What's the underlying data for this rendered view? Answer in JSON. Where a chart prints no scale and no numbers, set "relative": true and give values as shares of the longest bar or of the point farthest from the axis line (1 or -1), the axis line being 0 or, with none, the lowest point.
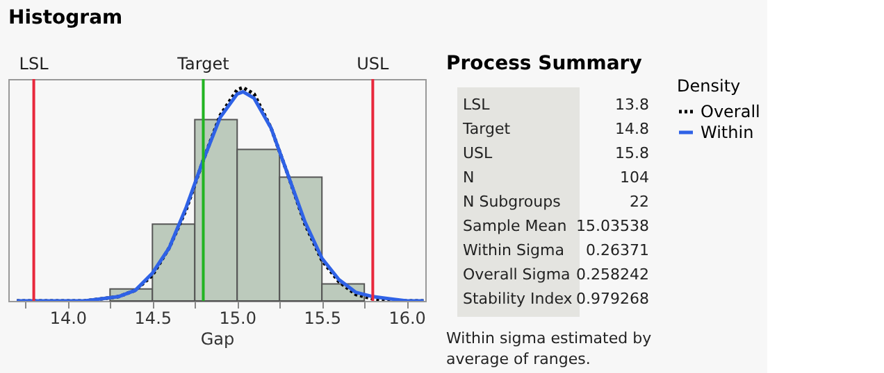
{
  "chart_data": [
    {
      "type": "histogram",
      "title": "Histogram",
      "xlabel": "Gap",
      "relative": true,
      "color": "#bccabc",
      "grid": false,
      "legend": "right",
      "legend_title": "Density",
      "bins": [
        14.25,
        14.5,
        14.75,
        15.0,
        15.25,
        15.5,
        15.75
      ],
      "values": [
        0.056,
        0.36,
        0.85,
        0.71,
        0.58,
        0.08
      ],
      "xlim": [
        13.65,
        16.11
      ],
      "xticks": [
        {
          "value": 13.75,
          "label": null
        },
        {
          "value": 14,
          "label": "14.0"
        },
        {
          "value": 14.25,
          "label": null
        },
        {
          "value": 14.5,
          "label": "14.5"
        },
        {
          "value": 14.75,
          "label": null
        },
        {
          "value": 15,
          "label": "15.0"
        },
        {
          "value": 15.25,
          "label": null
        },
        {
          "value": 15.5,
          "label": "15.5"
        },
        {
          "value": 15.75,
          "label": null
        },
        {
          "value": 16,
          "label": "16.0"
        }
      ],
      "ref_lines": [
        {
          "axis": "x",
          "value": 13.8,
          "label": "LSL",
          "color": "#e8283c"
        },
        {
          "axis": "x",
          "value": 14.8,
          "label": "Target",
          "color": "#22b422"
        },
        {
          "axis": "x",
          "value": 15.8,
          "label": "USL",
          "color": "#e8283c"
        }
      ],
      "series": [
        {
          "name": "Overall",
          "type": "line",
          "color": "#000000",
          "line_style": "dotted",
          "x": [
            13.7,
            13.8,
            13.9,
            14.0,
            14.1,
            14.2,
            14.3,
            14.4,
            14.5,
            14.6,
            14.7,
            14.8,
            14.9,
            15.0,
            15.035,
            15.1,
            15.2,
            15.3,
            15.4,
            15.5,
            15.6,
            15.7,
            15.8,
            15.9,
            16.0,
            16.1
          ],
          "values": [
            0,
            0,
            0,
            0,
            0,
            0.01,
            0.02,
            0.05,
            0.12,
            0.25,
            0.43,
            0.66,
            0.87,
            0.99,
            1.0,
            0.97,
            0.81,
            0.59,
            0.36,
            0.19,
            0.09,
            0.03,
            0.01,
            0,
            0,
            0
          ]
        },
        {
          "name": "Within",
          "type": "line",
          "color": "#2f62e6",
          "line_style": "solid",
          "x": [
            13.7,
            13.8,
            13.9,
            14.0,
            14.1,
            14.2,
            14.3,
            14.4,
            14.5,
            14.6,
            14.7,
            14.8,
            14.9,
            15.0,
            15.035,
            15.1,
            15.2,
            15.3,
            15.4,
            15.5,
            15.6,
            15.7,
            15.8,
            15.9,
            16.0,
            16.1
          ],
          "values": [
            0,
            0,
            0,
            0,
            0,
            0.01,
            0.02,
            0.05,
            0.13,
            0.25,
            0.44,
            0.66,
            0.86,
            0.97,
            0.98,
            0.95,
            0.81,
            0.59,
            0.37,
            0.2,
            0.1,
            0.04,
            0.02,
            0.01,
            0,
            0
          ]
        }
      ]
    },
    {
      "type": "other",
      "title": "Process Summary",
      "data_labels": true,
      "categories": [
        "LSL",
        "Target",
        "USL",
        "N",
        "N Subgroups",
        "Sample Mean",
        "Within Sigma",
        "Overall Sigma",
        "Stability Index"
      ],
      "values": [
        13.8,
        14.8,
        15.8,
        104,
        22,
        15.03538,
        0.26371,
        0.258242,
        0.979268
      ],
      "annotations": [
        "Within sigma estimated by average of ranges."
      ]
    }
  ]
}
